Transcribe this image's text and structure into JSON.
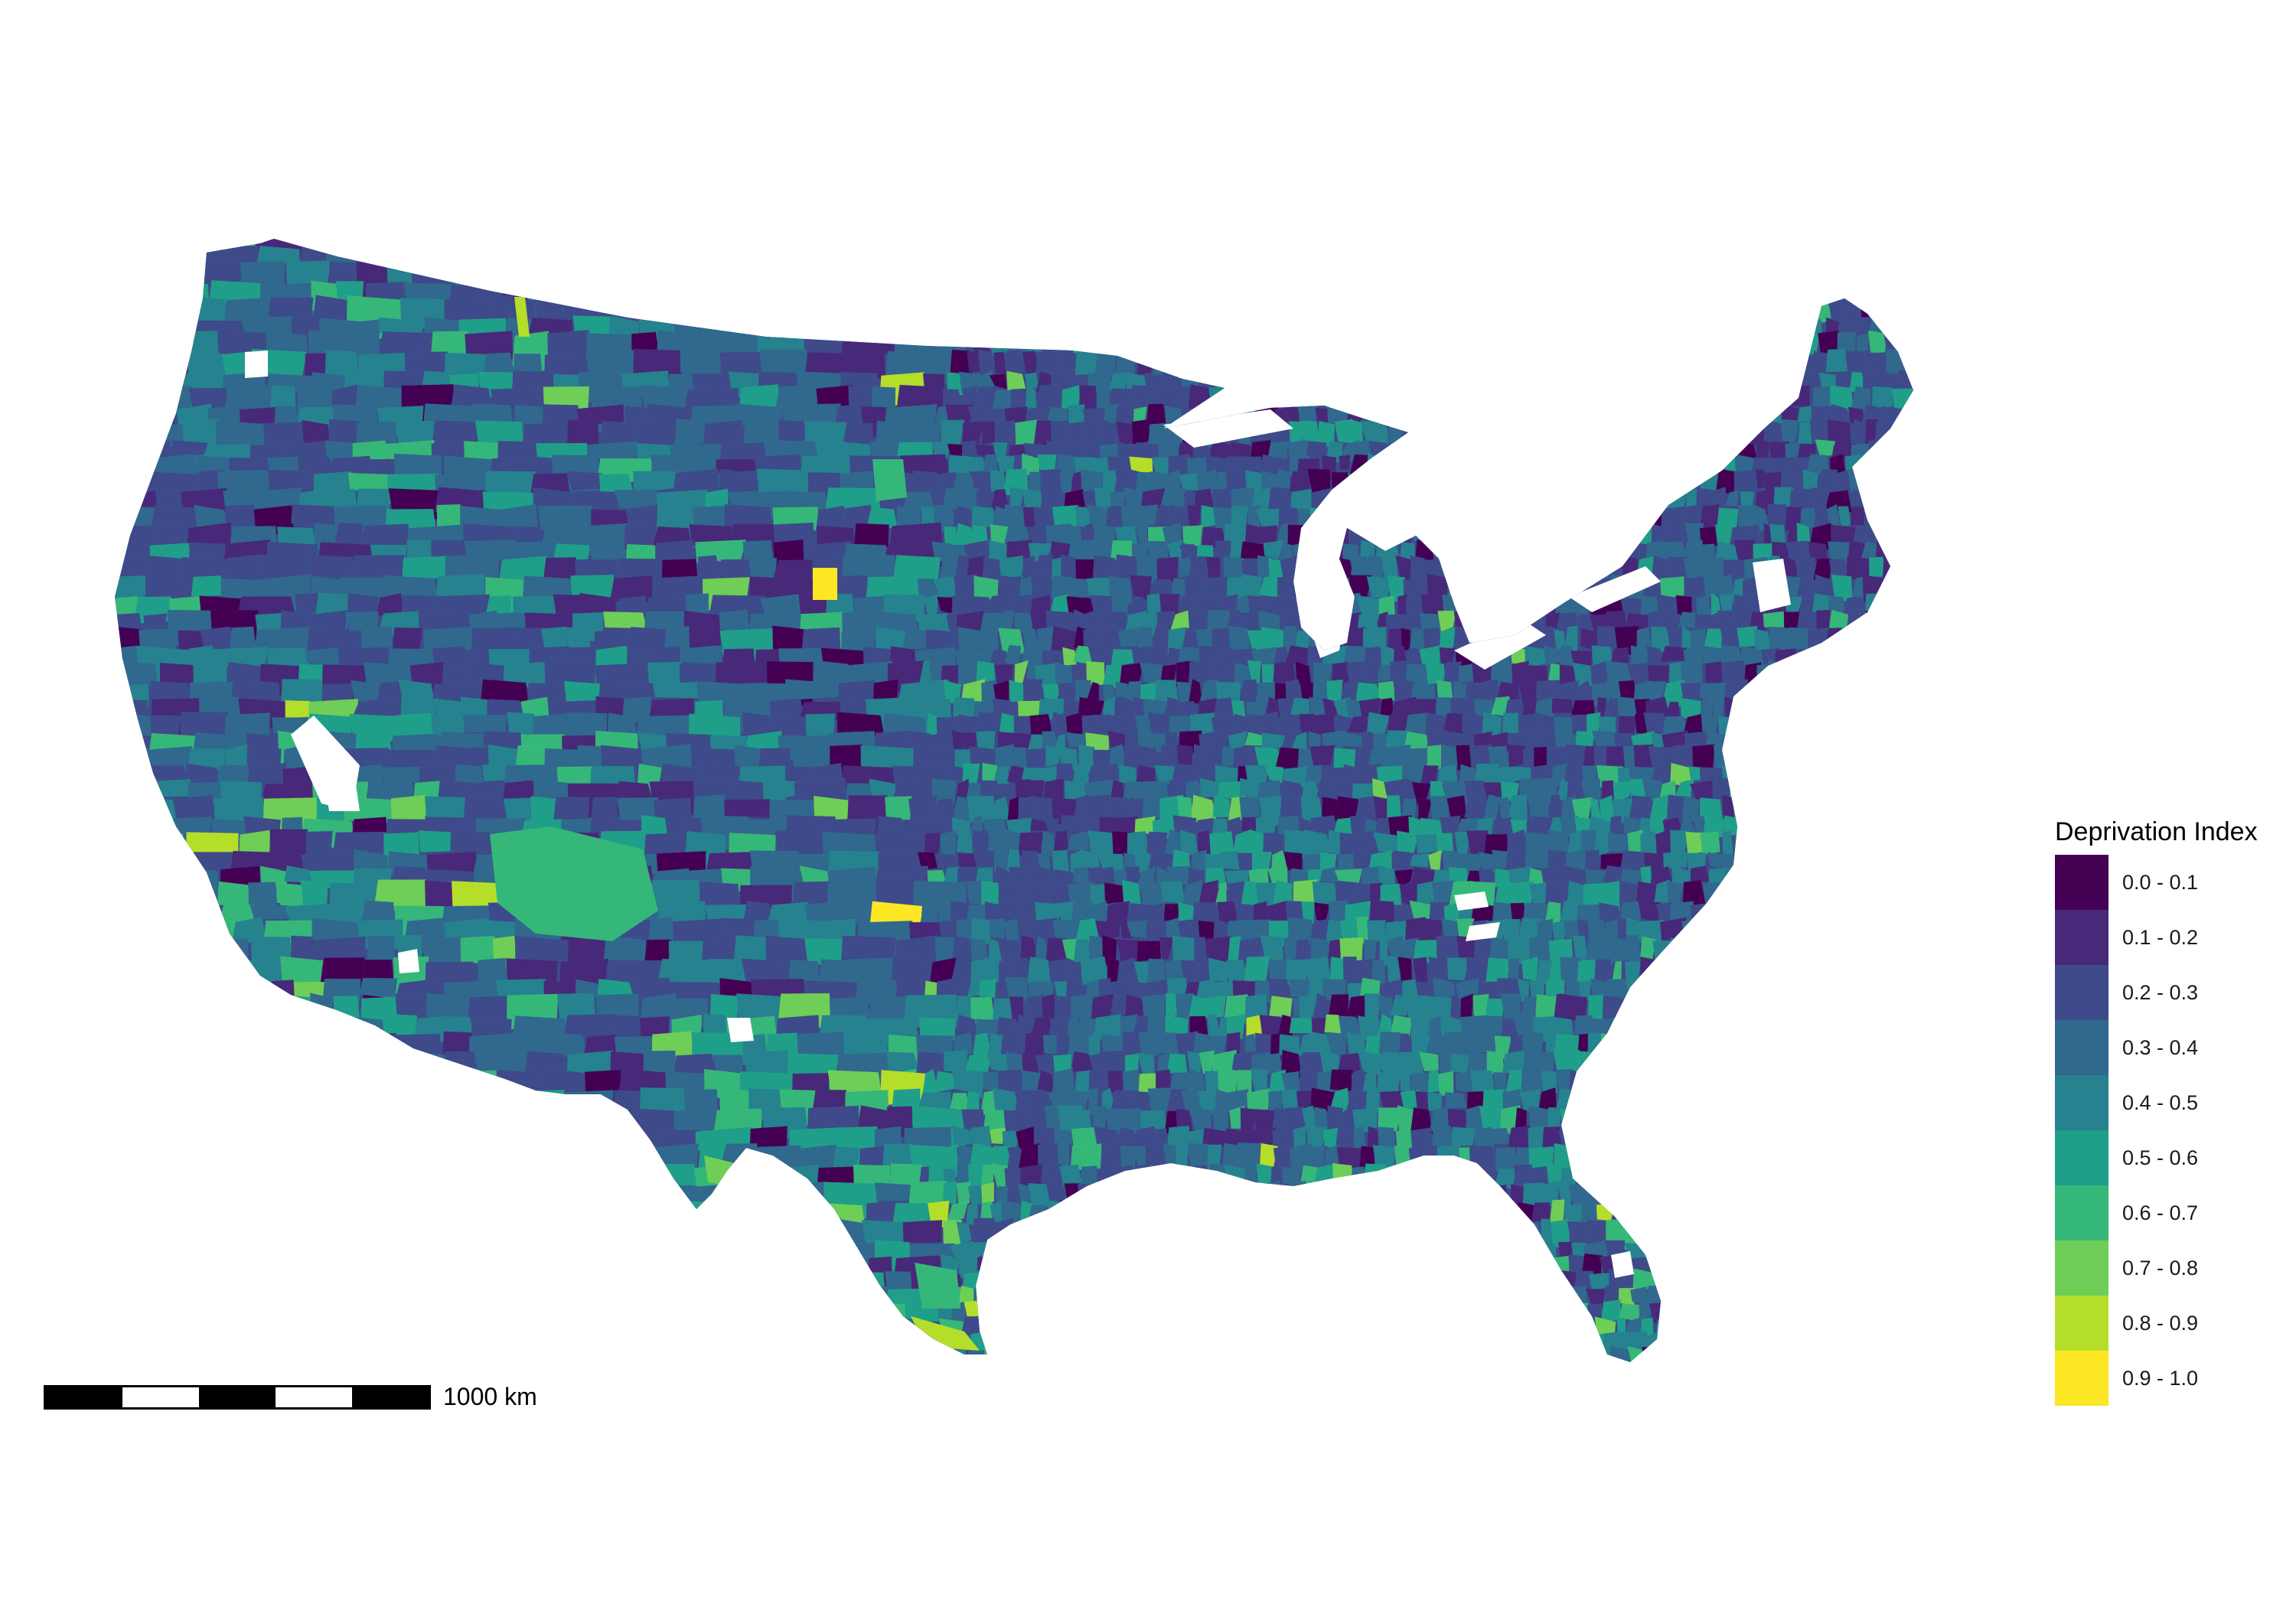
{
  "map": {
    "region": "contiguous-united-states",
    "fill_variable": "deprivation_index",
    "background_color": "#ffffff",
    "dominant_colors": [
      "#3b528b",
      "#31688e",
      "#26828e"
    ],
    "no_data_color": "#ffffff"
  },
  "legend": {
    "title": "Deprivation Index",
    "placement": "right",
    "items": [
      {
        "label": "0.0 - 0.1",
        "color": "#440154"
      },
      {
        "label": "0.1 - 0.2",
        "color": "#482878"
      },
      {
        "label": "0.2 - 0.3",
        "color": "#3e4a89"
      },
      {
        "label": "0.3 - 0.4",
        "color": "#31688e"
      },
      {
        "label": "0.4 - 0.5",
        "color": "#26828e"
      },
      {
        "label": "0.5 - 0.6",
        "color": "#1f9e89"
      },
      {
        "label": "0.6 - 0.7",
        "color": "#35b779"
      },
      {
        "label": "0.7 - 0.8",
        "color": "#6ece58"
      },
      {
        "label": "0.8 - 0.9",
        "color": "#b5de2b"
      },
      {
        "label": "0.9 - 1.0",
        "color": "#fde725"
      }
    ]
  },
  "scale_bar": {
    "label": "1000 km",
    "segments": 5,
    "placement": "bottom-left"
  }
}
